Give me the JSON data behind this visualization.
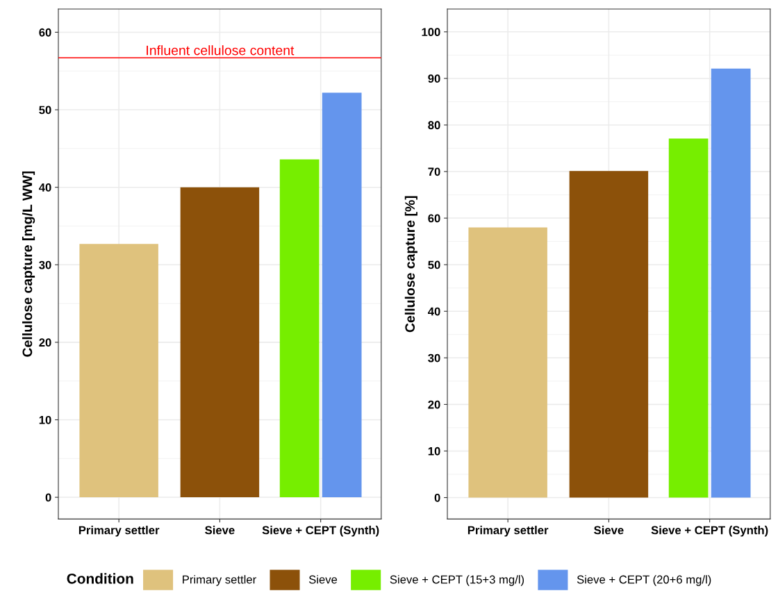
{
  "chart_data": [
    {
      "type": "bar",
      "categories": [
        "Primary settler",
        "Sieve",
        "Sieve + CEPT (Synth)"
      ],
      "ylabel": "Cellulose capture [mg/L WW]",
      "ylim": [
        -2.8,
        63
      ],
      "yticks": [
        0,
        10,
        20,
        30,
        40,
        50,
        60
      ],
      "grid": true,
      "legend": "bottom",
      "legend_title": "Condition",
      "series": [
        {
          "name": "Primary settler",
          "color": "#dfc27d",
          "values": [
            32.7,
            null,
            null
          ]
        },
        {
          "name": "Sieve",
          "color": "#8c510a",
          "values": [
            null,
            40.0,
            null
          ]
        },
        {
          "name": "Sieve + CEPT (15+3 mg/l)",
          "color": "#76ee00",
          "values": [
            null,
            null,
            43.6
          ]
        },
        {
          "name": "Sieve + CEPT (20+6 mg/l)",
          "color": "#6495ed",
          "values": [
            null,
            null,
            52.2
          ]
        }
      ],
      "ref_lines": [
        {
          "axis": "y",
          "value": 56.7,
          "label": "Influent cellulose content",
          "color": "#ff0000"
        }
      ]
    },
    {
      "type": "bar",
      "categories": [
        "Primary settler",
        "Sieve",
        "Sieve + CEPT (Synth)"
      ],
      "ylabel": "Cellulose capture [%]",
      "ylim": [
        -4.6,
        104.9
      ],
      "yticks": [
        0,
        10,
        20,
        30,
        40,
        50,
        60,
        70,
        80,
        90,
        100
      ],
      "grid": true,
      "series": [
        {
          "name": "Primary settler",
          "color": "#dfc27d",
          "values": [
            58.0,
            null,
            null
          ]
        },
        {
          "name": "Sieve",
          "color": "#8c510a",
          "values": [
            null,
            70.1,
            null
          ]
        },
        {
          "name": "Sieve + CEPT (15+3 mg/l)",
          "color": "#76ee00",
          "values": [
            null,
            null,
            77.1
          ]
        },
        {
          "name": "Sieve + CEPT (20+6 mg/l)",
          "color": "#6495ed",
          "values": [
            null,
            null,
            92.1
          ]
        }
      ]
    }
  ]
}
